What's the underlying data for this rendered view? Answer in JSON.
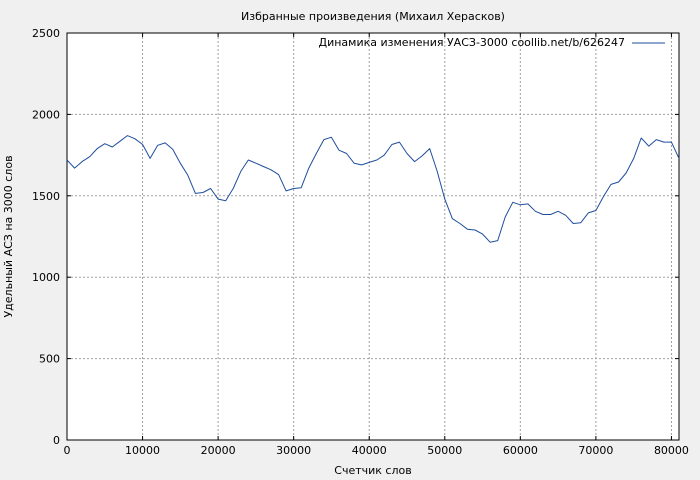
{
  "chart_data": {
    "type": "line",
    "title": "Избранные произведения (Михаил Херасков)",
    "xlabel": "Счетчик слов",
    "ylabel": "Удельный АСЗ на 3000 слов",
    "xlim": [
      0,
      81000
    ],
    "ylim": [
      0,
      2500
    ],
    "xticks": [
      0,
      10000,
      20000,
      30000,
      40000,
      50000,
      60000,
      70000,
      80000
    ],
    "yticks": [
      0,
      500,
      1000,
      1500,
      2000,
      2500
    ],
    "grid": true,
    "legend_position": "top-right",
    "line_color": "#1f4e9c",
    "series": [
      {
        "name": "Динамика изменения УАСЗ-3000 coollib.net/b/626247",
        "x": [
          0,
          1000,
          2000,
          3000,
          4000,
          5000,
          6000,
          7000,
          8000,
          9000,
          10000,
          11000,
          12000,
          13000,
          14000,
          15000,
          16000,
          17000,
          18000,
          19000,
          20000,
          21000,
          22000,
          23000,
          24000,
          25000,
          26000,
          27000,
          28000,
          29000,
          30000,
          31000,
          32000,
          33000,
          34000,
          35000,
          36000,
          37000,
          38000,
          39000,
          40000,
          41000,
          42000,
          43000,
          44000,
          45000,
          46000,
          47000,
          48000,
          49000,
          50000,
          51000,
          52000,
          53000,
          54000,
          55000,
          56000,
          57000,
          58000,
          59000,
          60000,
          61000,
          62000,
          63000,
          64000,
          65000,
          66000,
          67000,
          68000,
          69000,
          70000,
          71000,
          72000,
          73000,
          74000,
          75000,
          76000,
          77000,
          78000,
          79000,
          80000,
          81000
        ],
        "y": [
          1720,
          1670,
          1710,
          1740,
          1790,
          1820,
          1800,
          1835,
          1870,
          1850,
          1815,
          1730,
          1810,
          1825,
          1785,
          1700,
          1625,
          1515,
          1520,
          1545,
          1480,
          1470,
          1545,
          1650,
          1720,
          1700,
          1680,
          1660,
          1630,
          1530,
          1545,
          1550,
          1670,
          1760,
          1845,
          1860,
          1780,
          1760,
          1700,
          1690,
          1705,
          1720,
          1750,
          1815,
          1830,
          1760,
          1710,
          1745,
          1790,
          1650,
          1480,
          1360,
          1330,
          1295,
          1290,
          1265,
          1215,
          1225,
          1370,
          1460,
          1445,
          1450,
          1405,
          1385,
          1385,
          1405,
          1380,
          1330,
          1335,
          1395,
          1410,
          1495,
          1570,
          1585,
          1640,
          1730,
          1855,
          1805,
          1845,
          1830,
          1830,
          1730
        ]
      }
    ]
  }
}
